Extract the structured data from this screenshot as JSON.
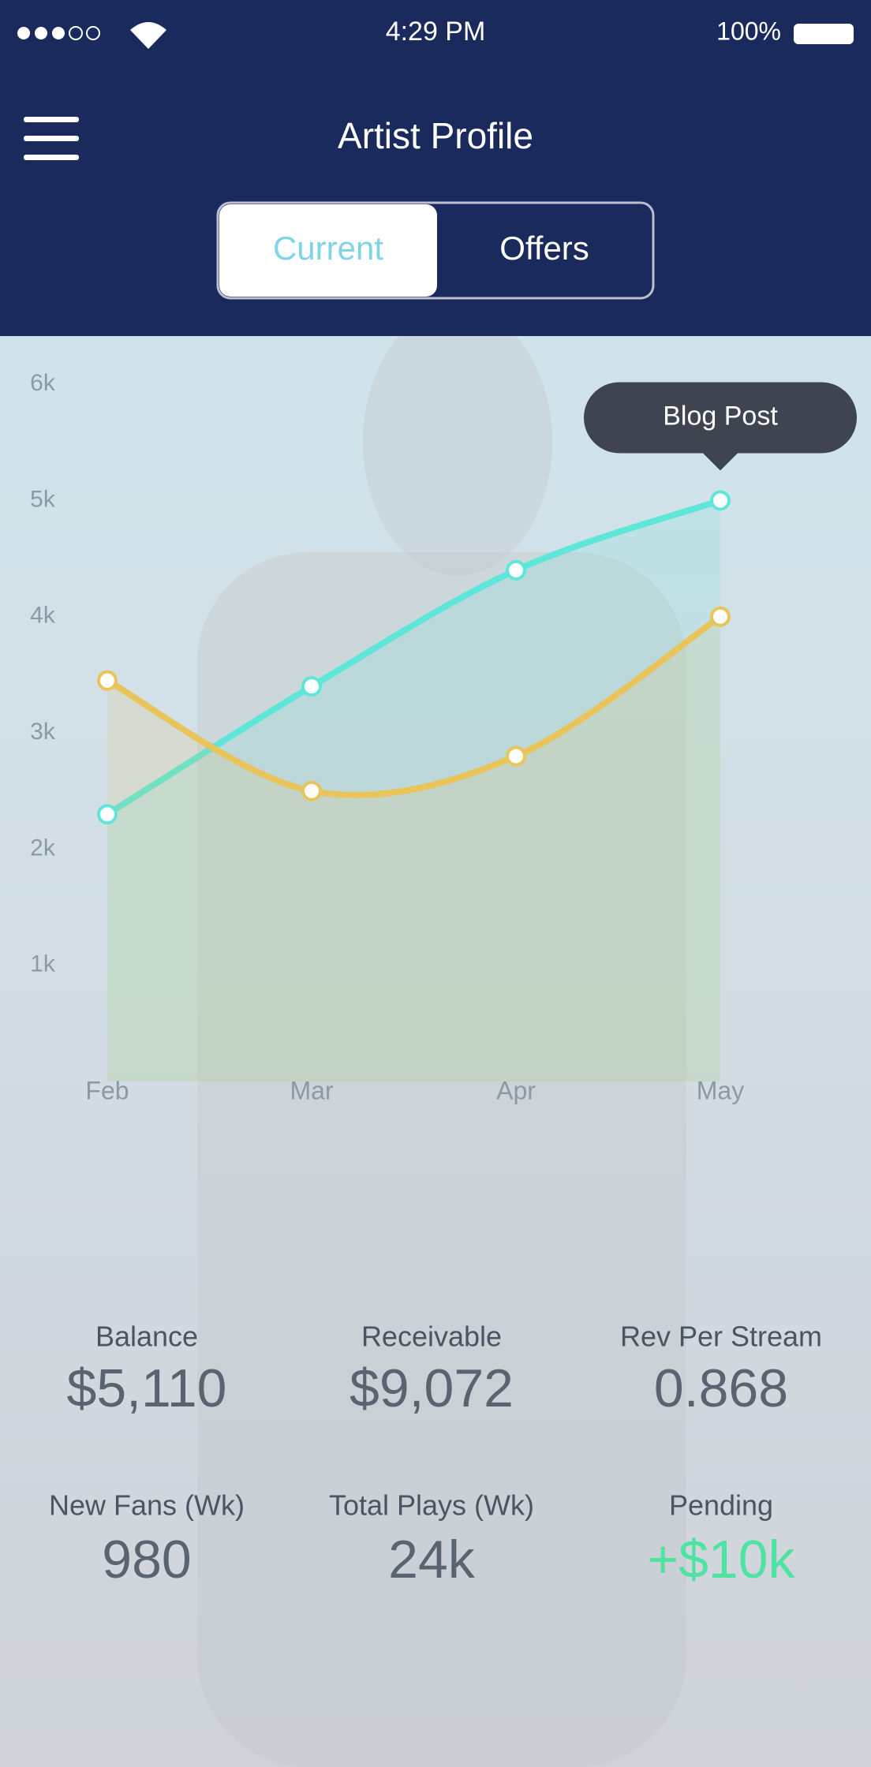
{
  "status_bar": {
    "time": "4:29 PM",
    "battery": "100%"
  },
  "header": {
    "title": "Artist Profile",
    "tabs": [
      "Current",
      "Offers"
    ]
  },
  "chart_data": {
    "type": "line",
    "categories": [
      "Feb",
      "Mar",
      "Apr",
      "May"
    ],
    "series": [
      {
        "color": "#5ee6d8",
        "values": [
          2300,
          3400,
          4400,
          5000
        ]
      },
      {
        "color": "#e8c45a",
        "values": [
          3450,
          2500,
          2800,
          4000
        ]
      }
    ],
    "annotation": "Blog Post",
    "ylim": [
      0,
      6300
    ],
    "yticks": [
      {
        "value": 1000,
        "label": "1k"
      },
      {
        "value": 2000,
        "label": "2k"
      },
      {
        "value": 3000,
        "label": "3k"
      },
      {
        "value": 4000,
        "label": "4k"
      },
      {
        "value": 5000,
        "label": "5k"
      },
      {
        "value": 6000,
        "label": "6k"
      }
    ],
    "grid": false
  },
  "stats": [
    {
      "label": "Balance",
      "value": "$5,110"
    },
    {
      "label": "Receivable",
      "value": "$9,072"
    },
    {
      "label": "Rev Per Stream",
      "value": "0.868"
    },
    {
      "label": "New Fans (Wk)",
      "value": "980"
    },
    {
      "label": "Total Plays (Wk)",
      "value": "24k"
    },
    {
      "label": "Pending",
      "value": "+$10k"
    }
  ]
}
